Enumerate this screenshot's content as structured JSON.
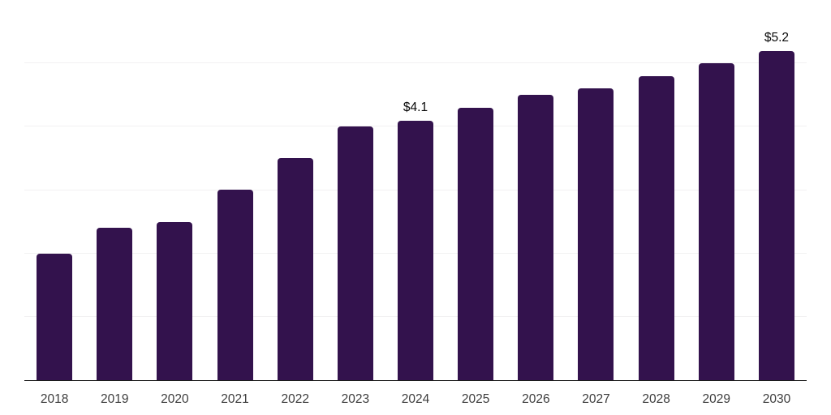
{
  "chart_data": {
    "type": "bar",
    "title": "",
    "xlabel": "",
    "ylabel": "",
    "categories": [
      "2018",
      "2019",
      "2020",
      "2021",
      "2022",
      "2023",
      "2024",
      "2025",
      "2026",
      "2027",
      "2028",
      "2029",
      "2030"
    ],
    "values": [
      2.0,
      2.4,
      2.5,
      3.0,
      3.5,
      4.0,
      4.1,
      4.3,
      4.5,
      4.6,
      4.8,
      5.0,
      5.2
    ],
    "value_labels": [
      "",
      "",
      "",
      "",
      "",
      "",
      "$4.1",
      "",
      "",
      "",
      "",
      "",
      "$5.2"
    ],
    "ylim": [
      0,
      6
    ],
    "grid": true,
    "grid_interval": 1,
    "legend": "none",
    "currency_unit": "$"
  },
  "style": {
    "bar_color": "#33124d",
    "gridline_color": "#f2f1f2",
    "axis_line_color": "#1c1c1c",
    "tick_label_color": "#3d3d3d",
    "value_label_color": "#0a0a0a",
    "background_color": "#ffffff"
  }
}
